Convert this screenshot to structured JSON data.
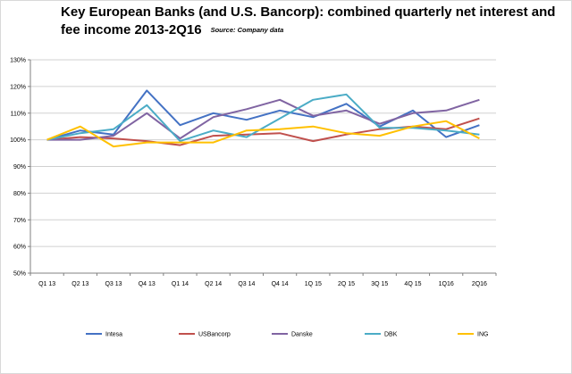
{
  "title": {
    "line1": "Key European Banks (and U.S. Bancorp): combined quarterly  net interest and",
    "line2": "fee income 2013-2Q16",
    "source": "Source: Company data"
  },
  "chart_data": {
    "type": "line",
    "title": "Key European Banks (and U.S. Bancorp): combined quarterly  net interest and fee income 2013-2Q16",
    "subtitle": "Source: Company data",
    "categories": [
      "Q1 13",
      "Q2 13",
      "Q3 13",
      "Q4 13",
      "Q1 14",
      "Q2 14",
      "Q3 14",
      "Q4 14",
      "1Q 15",
      "2Q 15",
      "3Q 15",
      "4Q 15",
      "1Q16",
      "2Q16"
    ],
    "y_tick_labels": [
      "50%",
      "60%",
      "70%",
      "80%",
      "90%",
      "100%",
      "110%",
      "120%",
      "130%"
    ],
    "ylim": [
      50,
      130
    ],
    "y_unit": "%",
    "grid": true,
    "legend_position": "bottom",
    "series": [
      {
        "name": "Intesa",
        "color": "#4472C4",
        "values": [
          100,
          103.5,
          102,
          118.5,
          105.5,
          110,
          107.5,
          111,
          108.5,
          113.5,
          105,
          111,
          101,
          105.5
        ]
      },
      {
        "name": "USBancorp",
        "color": "#C0504D",
        "values": [
          100,
          101,
          100.5,
          99.5,
          98,
          101.5,
          102,
          102.5,
          99.5,
          102,
          104,
          105,
          104,
          108
        ]
      },
      {
        "name": "Danske",
        "color": "#8064A2",
        "values": [
          100,
          100,
          101.5,
          110,
          100.5,
          108.5,
          111.5,
          115,
          109,
          111,
          106,
          110,
          111,
          115
        ]
      },
      {
        "name": "DBK",
        "color": "#4BACC6",
        "values": [
          100,
          102.5,
          104,
          113,
          99.5,
          103.5,
          101,
          108,
          115,
          117,
          104.5,
          104.5,
          103.5,
          102
        ]
      },
      {
        "name": "ING",
        "color": "#FFC000",
        "values": [
          100,
          105,
          97.5,
          99,
          99,
          99,
          103.5,
          104,
          105,
          102.5,
          101.5,
          105,
          107,
          100.5
        ]
      }
    ]
  }
}
